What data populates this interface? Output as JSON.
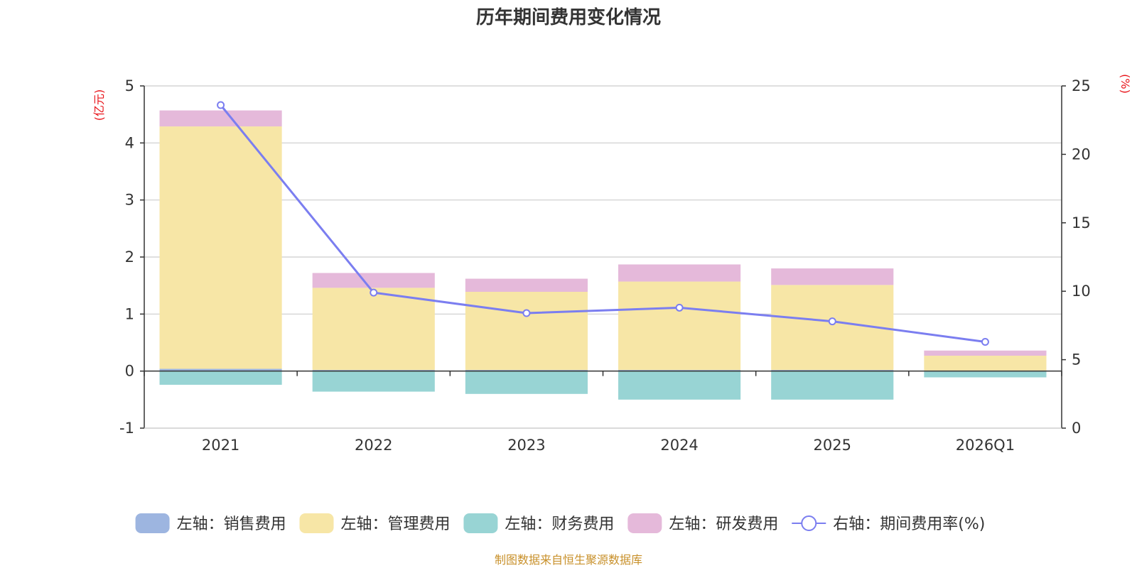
{
  "chart_data": {
    "type": "bar",
    "title": "历年期间费用变化情况",
    "categories": [
      "2021",
      "2022",
      "2023",
      "2024",
      "2025",
      "2026Q1"
    ],
    "left_axis": {
      "unit_label": "(亿元)",
      "ylim": [
        -1,
        5
      ],
      "ticks": [
        -1,
        0,
        1,
        2,
        3,
        4,
        5
      ]
    },
    "right_axis": {
      "unit_label": "(%)",
      "ylim": [
        0,
        25
      ],
      "ticks": [
        0,
        5,
        10,
        15,
        20,
        25
      ]
    },
    "series": [
      {
        "name": "左轴：销售费用",
        "kind": "bar",
        "axis": "left",
        "color": "#9db5e0",
        "values": [
          0.04,
          0.02,
          0.02,
          0.02,
          0.02,
          0.01
        ]
      },
      {
        "name": "左轴：管理费用",
        "kind": "bar",
        "axis": "left",
        "color": "#f7e6a6",
        "values": [
          4.25,
          1.44,
          1.37,
          1.55,
          1.49,
          0.26
        ]
      },
      {
        "name": "左轴：财务费用",
        "kind": "bar",
        "axis": "left",
        "color": "#98d4d4",
        "values": [
          -0.24,
          -0.36,
          -0.4,
          -0.5,
          -0.5,
          -0.11
        ]
      },
      {
        "name": "左轴：研发费用",
        "kind": "bar",
        "axis": "left",
        "color": "#e5b9da",
        "values": [
          0.28,
          0.26,
          0.23,
          0.3,
          0.29,
          0.09
        ]
      },
      {
        "name": "右轴：期间费用率(%)",
        "kind": "line",
        "axis": "right",
        "color": "#7b7ef0",
        "values": [
          23.6,
          9.9,
          8.4,
          8.8,
          7.8,
          6.3
        ]
      }
    ],
    "grid": true,
    "legend_position": "bottom"
  },
  "footer": {
    "source": "制图数据来自恒生聚源数据库"
  }
}
